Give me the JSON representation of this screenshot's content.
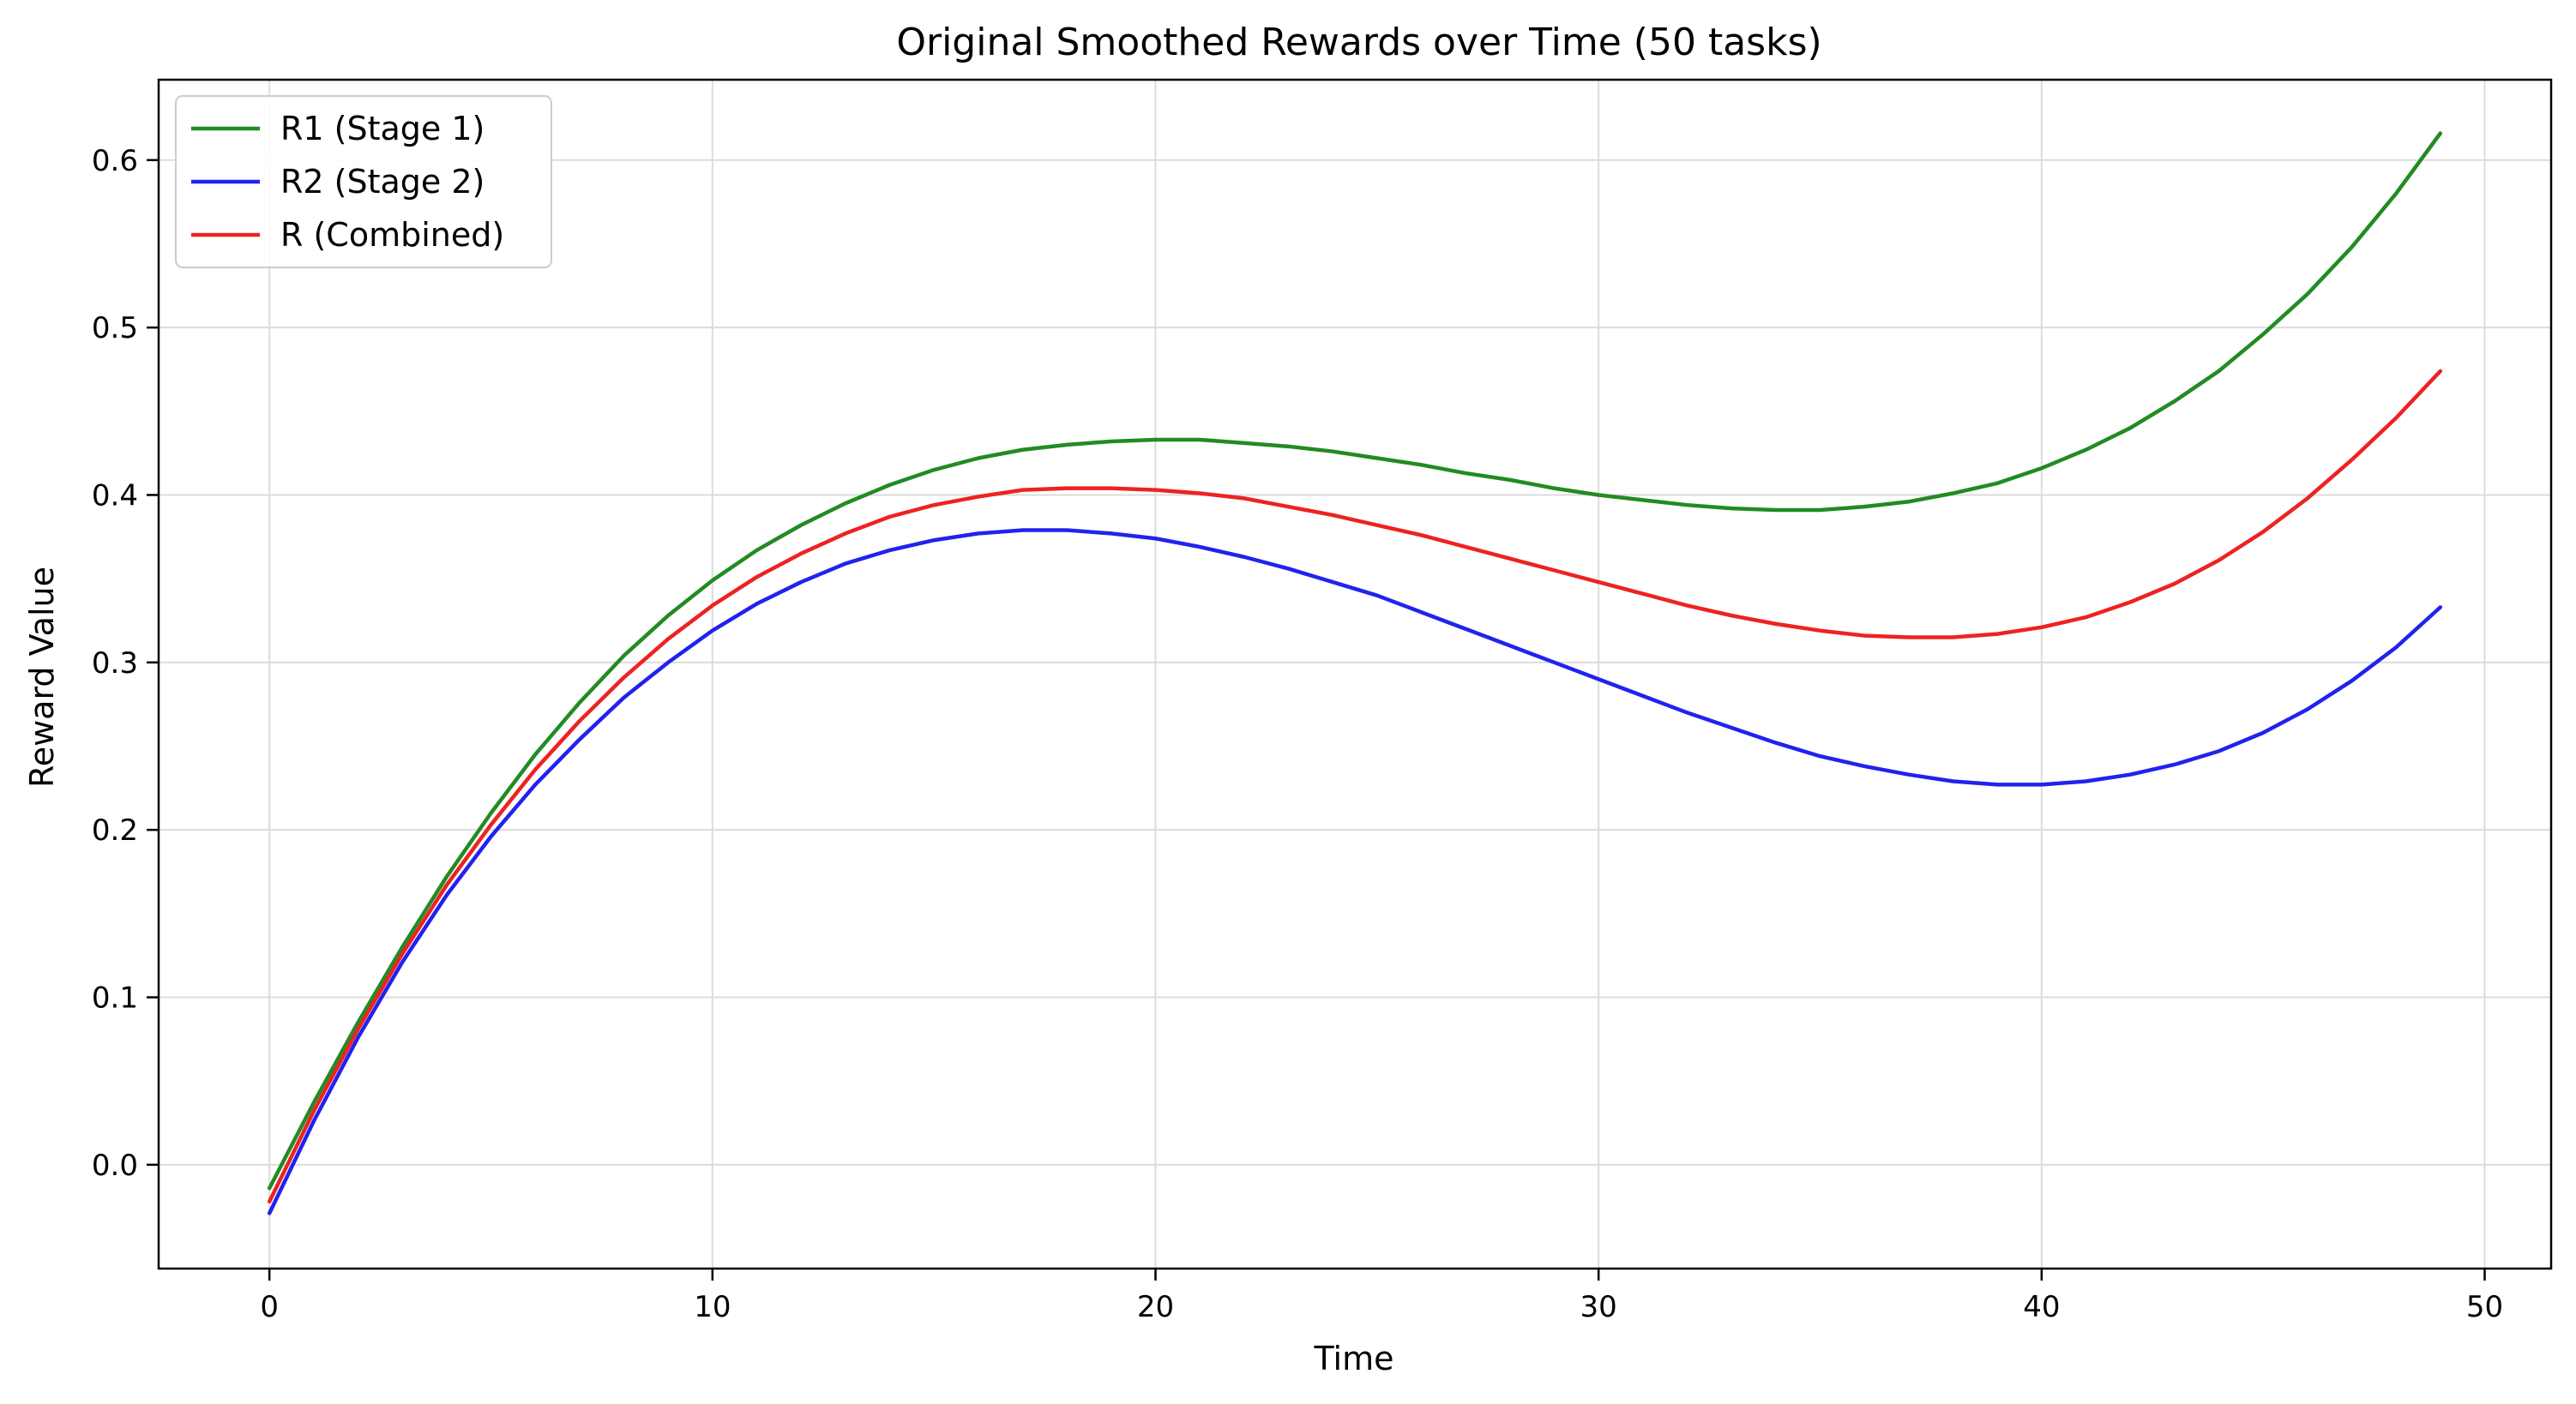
{
  "chart_data": {
    "type": "line",
    "title": "Original Smoothed Rewards over Time (50 tasks)",
    "xlabel": "Time",
    "ylabel": "Reward Value",
    "xlim": [
      -2.5,
      51.5
    ],
    "ylim": [
      -0.062,
      0.648
    ],
    "xticks": [
      0,
      10,
      20,
      30,
      40,
      50
    ],
    "xtick_labels": [
      "0",
      "10",
      "20",
      "30",
      "40",
      "50"
    ],
    "yticks": [
      0.0,
      0.1,
      0.2,
      0.3,
      0.4,
      0.5,
      0.6
    ],
    "ytick_labels": [
      "0.0",
      "0.1",
      "0.2",
      "0.3",
      "0.4",
      "0.5",
      "0.6"
    ],
    "grid": true,
    "legend_position": "upper-left",
    "x": [
      0,
      1,
      2,
      3,
      4,
      5,
      6,
      7,
      8,
      9,
      10,
      11,
      12,
      13,
      14,
      15,
      16,
      17,
      18,
      19,
      20,
      21,
      22,
      23,
      24,
      25,
      26,
      27,
      28,
      29,
      30,
      31,
      32,
      33,
      34,
      35,
      36,
      37,
      38,
      39,
      40,
      41,
      42,
      43,
      44,
      45,
      46,
      47,
      48,
      49
    ],
    "series": [
      {
        "name": "R1 (Stage 1)",
        "color": "#228b22",
        "values": [
          -0.014,
          0.037,
          0.085,
          0.13,
          0.172,
          0.21,
          0.245,
          0.276,
          0.304,
          0.328,
          0.349,
          0.367,
          0.382,
          0.395,
          0.406,
          0.415,
          0.422,
          0.427,
          0.43,
          0.432,
          0.433,
          0.433,
          0.431,
          0.429,
          0.426,
          0.422,
          0.418,
          0.413,
          0.409,
          0.404,
          0.4,
          0.397,
          0.394,
          0.392,
          0.391,
          0.391,
          0.393,
          0.396,
          0.401,
          0.407,
          0.416,
          0.427,
          0.44,
          0.456,
          0.474,
          0.496,
          0.52,
          0.548,
          0.58,
          0.616
        ]
      },
      {
        "name": "R2 (Stage 2)",
        "color": "#2222ee",
        "values": [
          -0.029,
          0.026,
          0.076,
          0.121,
          0.161,
          0.196,
          0.227,
          0.254,
          0.279,
          0.3,
          0.319,
          0.335,
          0.348,
          0.359,
          0.367,
          0.373,
          0.377,
          0.379,
          0.379,
          0.377,
          0.374,
          0.369,
          0.363,
          0.356,
          0.348,
          0.34,
          0.33,
          0.32,
          0.31,
          0.3,
          0.29,
          0.28,
          0.27,
          0.261,
          0.252,
          0.244,
          0.238,
          0.233,
          0.229,
          0.227,
          0.227,
          0.229,
          0.233,
          0.239,
          0.247,
          0.258,
          0.272,
          0.289,
          0.309,
          0.333
        ]
      },
      {
        "name": "R (Combined)",
        "color": "#ee2222",
        "values": [
          -0.022,
          0.032,
          0.081,
          0.126,
          0.167,
          0.203,
          0.236,
          0.265,
          0.291,
          0.314,
          0.334,
          0.351,
          0.365,
          0.377,
          0.387,
          0.394,
          0.399,
          0.403,
          0.404,
          0.404,
          0.403,
          0.401,
          0.398,
          0.393,
          0.388,
          0.382,
          0.376,
          0.369,
          0.362,
          0.355,
          0.348,
          0.341,
          0.334,
          0.328,
          0.323,
          0.319,
          0.316,
          0.315,
          0.315,
          0.317,
          0.321,
          0.327,
          0.336,
          0.347,
          0.361,
          0.378,
          0.398,
          0.421,
          0.446,
          0.474
        ]
      }
    ]
  }
}
